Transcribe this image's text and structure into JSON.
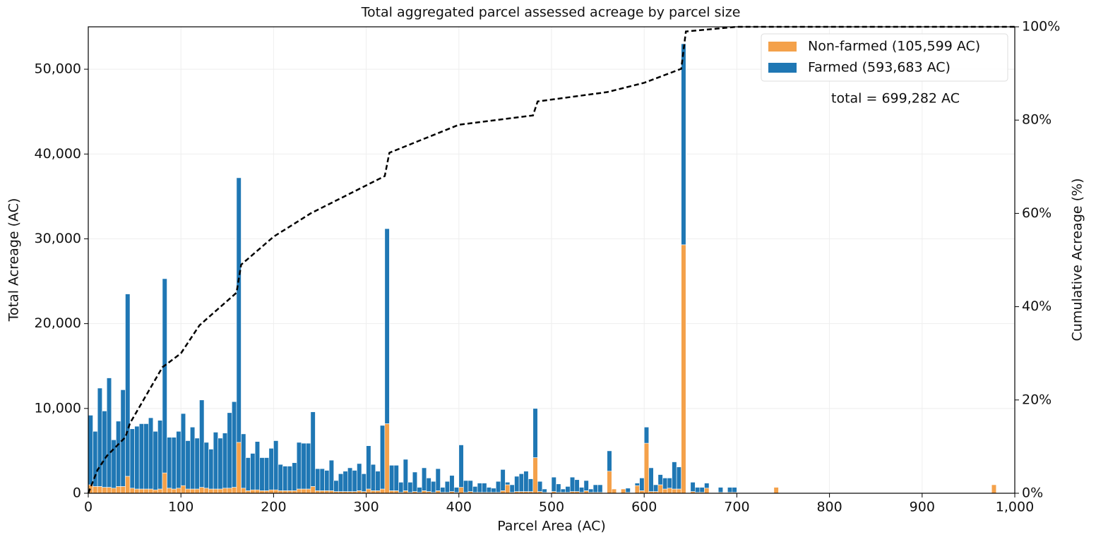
{
  "chart_data": {
    "type": "histogram",
    "title": "Total aggregated parcel assessed acreage by parcel size",
    "xlabel": "Parcel Area (AC)",
    "ylabel": "Total Acreage (AC)",
    "y2label": "Cumulative Acreage (%)",
    "annotation": "total = 699,282 AC",
    "legend": "upper right",
    "grid": true,
    "stacked": true,
    "bins": [
      0,
      5,
      10,
      15,
      20,
      25,
      30,
      35,
      40,
      45,
      50,
      55,
      60,
      65,
      70,
      75,
      80,
      85,
      90,
      95,
      100,
      105,
      110,
      115,
      120,
      125,
      130,
      135,
      140,
      145,
      150,
      155,
      160,
      165,
      170,
      175,
      180,
      185,
      190,
      195,
      200,
      205,
      210,
      215,
      220,
      225,
      230,
      235,
      240,
      245,
      250,
      255,
      260,
      265,
      270,
      275,
      280,
      285,
      290,
      295,
      300,
      305,
      310,
      315,
      320,
      325,
      330,
      335,
      340,
      345,
      350,
      355,
      360,
      365,
      370,
      375,
      380,
      385,
      390,
      395,
      400,
      405,
      410,
      415,
      420,
      425,
      430,
      435,
      440,
      445,
      450,
      455,
      460,
      465,
      470,
      475,
      480,
      485,
      490,
      495,
      500,
      505,
      510,
      515,
      520,
      525,
      530,
      535,
      540,
      545,
      550,
      555,
      560,
      565,
      570,
      575,
      580,
      585,
      590,
      595,
      600,
      605,
      610,
      615,
      620,
      625,
      630,
      635,
      640,
      645,
      650,
      655,
      660,
      665,
      670,
      675,
      680,
      685,
      690,
      695,
      700,
      740,
      745,
      975,
      980
    ],
    "series": [
      {
        "name": "Non-farmed (105,599 AC)",
        "color": "#f4a14a",
        "values": [
          1000,
          800,
          800,
          700,
          700,
          600,
          800,
          800,
          2000,
          600,
          500,
          500,
          500,
          500,
          400,
          500,
          2400,
          600,
          500,
          600,
          900,
          500,
          500,
          500,
          700,
          600,
          500,
          500,
          500,
          600,
          600,
          700,
          6000,
          600,
          300,
          400,
          400,
          300,
          300,
          400,
          400,
          300,
          300,
          300,
          300,
          500,
          500,
          500,
          800,
          300,
          300,
          300,
          300,
          200,
          200,
          200,
          200,
          200,
          300,
          200,
          500,
          300,
          300,
          500,
          8200,
          300,
          300,
          100,
          300,
          100,
          200,
          100,
          300,
          200,
          100,
          300,
          100,
          100,
          200,
          100,
          700,
          100,
          200,
          100,
          100,
          100,
          100,
          100,
          100,
          300,
          1000,
          100,
          200,
          200,
          200,
          200,
          4200,
          200,
          100,
          0,
          200,
          100,
          100,
          100,
          200,
          200,
          100,
          300,
          100,
          100,
          100,
          0,
          2600,
          500,
          0,
          500,
          100,
          0,
          900,
          300,
          5900,
          200,
          200,
          1000,
          500,
          600,
          500,
          500,
          29300,
          0,
          200,
          100,
          100,
          600,
          0,
          0,
          100,
          0,
          100,
          100,
          0,
          700,
          0,
          1000
        ]
      },
      {
        "name": "Farmed (593,683 AC)",
        "color": "#1f77b4",
        "values": [
          8200,
          6500,
          11600,
          9000,
          12900,
          5700,
          7700,
          11400,
          21500,
          7000,
          7400,
          7700,
          7700,
          8400,
          6900,
          8100,
          22900,
          6000,
          6100,
          6700,
          8500,
          5700,
          7300,
          6000,
          10300,
          5400,
          4700,
          6700,
          6000,
          6500,
          8900,
          10100,
          31200,
          6400,
          3900,
          4300,
          5700,
          3900,
          3900,
          4900,
          5800,
          3100,
          2900,
          2900,
          3300,
          5500,
          5400,
          5400,
          8800,
          2600,
          2600,
          2400,
          3600,
          1300,
          2100,
          2400,
          2800,
          2500,
          3200,
          2100,
          5100,
          3100,
          2300,
          7500,
          23000,
          3000,
          3000,
          1200,
          3700,
          1200,
          2300,
          600,
          2700,
          1600,
          1300,
          2600,
          600,
          1300,
          1900,
          600,
          5000,
          1400,
          1300,
          700,
          1100,
          1100,
          600,
          500,
          1300,
          2500,
          300,
          900,
          1800,
          2100,
          2400,
          1500,
          5800,
          1200,
          400,
          0,
          1700,
          1000,
          400,
          700,
          1700,
          1400,
          600,
          1200,
          400,
          900,
          900,
          0,
          2400,
          0,
          0,
          0,
          500,
          0,
          300,
          1500,
          1900,
          2800,
          800,
          1200,
          1300,
          1200,
          3200,
          2600,
          23700,
          0,
          1100,
          600,
          600,
          600,
          0,
          0,
          600,
          0,
          600,
          600,
          0,
          0,
          0,
          0
        ]
      }
    ],
    "line": {
      "color": "#000000",
      "axis": "y2",
      "x": [
        0,
        10,
        20,
        30,
        40,
        45,
        80,
        100,
        120,
        160,
        165,
        200,
        240,
        280,
        320,
        325,
        400,
        480,
        485,
        560,
        600,
        640,
        645,
        700,
        1000
      ],
      "values": [
        0,
        5,
        8,
        10,
        12,
        15,
        27,
        30,
        36,
        43,
        49,
        55,
        60,
        64,
        68,
        73,
        79,
        81,
        84,
        86,
        88,
        91,
        99,
        100,
        100
      ]
    },
    "xlim": [
      0,
      1000
    ],
    "xticks": [
      0,
      100,
      200,
      300,
      400,
      500,
      600,
      700,
      800,
      900,
      {
        "value": 1000,
        "label": "1,000"
      }
    ],
    "ylim": [
      0,
      55000
    ],
    "yticks": [
      0,
      {
        "value": 10000,
        "label": "10,000"
      },
      {
        "value": 20000,
        "label": "20,000"
      },
      {
        "value": 30000,
        "label": "30,000"
      },
      {
        "value": 40000,
        "label": "40,000"
      },
      {
        "value": 50000,
        "label": "50,000"
      }
    ],
    "y2lim": [
      0,
      100
    ],
    "y2ticks": [
      {
        "value": 0,
        "label": "0%"
      },
      {
        "value": 20,
        "label": "20%"
      },
      {
        "value": 40,
        "label": "40%"
      },
      {
        "value": 60,
        "label": "60%"
      },
      {
        "value": 80,
        "label": "80%"
      },
      {
        "value": 100,
        "label": "100%"
      }
    ]
  }
}
